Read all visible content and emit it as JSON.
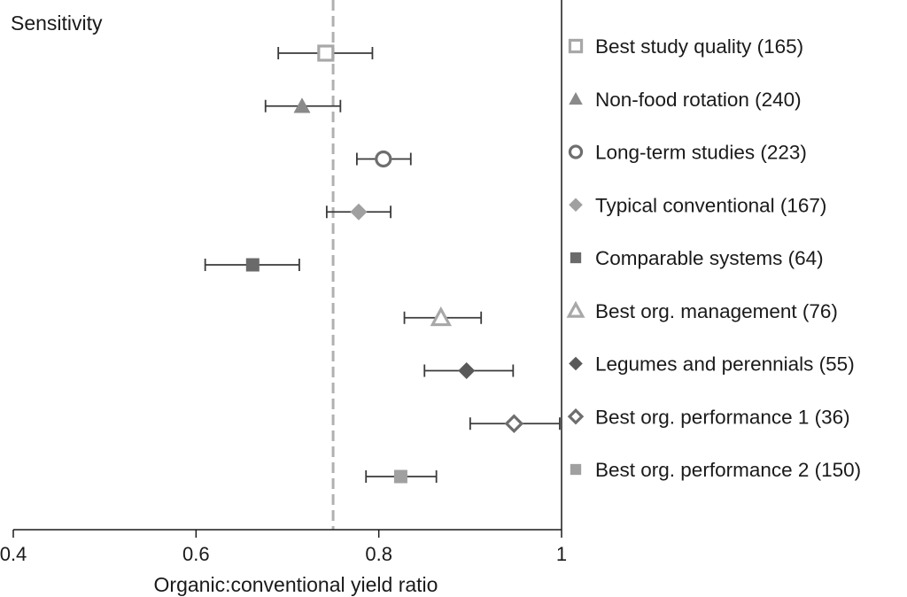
{
  "chart_data": {
    "type": "scatter",
    "title": "Sensitivity",
    "xlabel": "Organic:conventional yield ratio",
    "ylabel": "",
    "xlim": [
      0.4,
      1.0
    ],
    "x_ticks": [
      "0.4",
      "0.6",
      "0.8",
      "1"
    ],
    "x_tick_values": [
      0.4,
      0.6,
      0.8,
      1.0
    ],
    "reference_line": 0.75,
    "grid": false,
    "legend_position": "right",
    "series": [
      {
        "name": "Best study quality (165)",
        "value": 0.742,
        "ci": [
          0.69,
          0.793
        ],
        "marker": "square-open",
        "color": "#a8a8a8"
      },
      {
        "name": "Non-food rotation (240)",
        "value": 0.716,
        "ci": [
          0.676,
          0.758
        ],
        "marker": "triangle-filled",
        "color": "#8a8a8a"
      },
      {
        "name": "Long-term studies (223)",
        "value": 0.805,
        "ci": [
          0.776,
          0.835
        ],
        "marker": "circle-open",
        "color": "#6e6e6e"
      },
      {
        "name": "Typical conventional (167)",
        "value": 0.778,
        "ci": [
          0.743,
          0.813
        ],
        "marker": "diamond-filled",
        "color": "#a0a0a0"
      },
      {
        "name": "Comparable systems (64)",
        "value": 0.662,
        "ci": [
          0.61,
          0.713
        ],
        "marker": "square-filled",
        "color": "#6a6a6a"
      },
      {
        "name": "Best org. management (76)",
        "value": 0.868,
        "ci": [
          0.828,
          0.912
        ],
        "marker": "triangle-open",
        "color": "#a8a8a8"
      },
      {
        "name": "Legumes and perennials (55)",
        "value": 0.896,
        "ci": [
          0.85,
          0.947
        ],
        "marker": "diamond-filled",
        "color": "#595959"
      },
      {
        "name": "Best org. performance 1 (36)",
        "value": 0.948,
        "ci": [
          0.9,
          0.998
        ],
        "marker": "diamond-open",
        "color": "#6e6e6e"
      },
      {
        "name": "Best org. performance 2 (150)",
        "value": 0.824,
        "ci": [
          0.786,
          0.863
        ],
        "marker": "square-filled",
        "color": "#a0a0a0"
      }
    ]
  }
}
